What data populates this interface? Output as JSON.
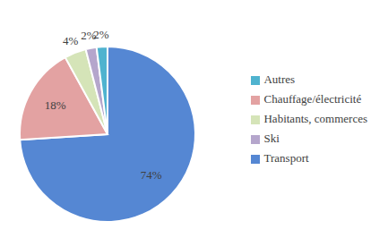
{
  "chart_data": {
    "type": "pie",
    "categories": [
      "Transport",
      "Chauffage/électricité",
      "Habitants, commerces",
      "Ski",
      "Autres"
    ],
    "values": [
      74,
      18,
      4,
      2,
      2
    ],
    "value_labels": [
      "74%",
      "18%",
      "4%",
      "2%",
      "2%"
    ],
    "colors": [
      "#5587d3",
      "#e3a2a2",
      "#d5e4b8",
      "#b5a6cc",
      "#4fb3cf"
    ],
    "data_labels": true,
    "legend": "right"
  }
}
